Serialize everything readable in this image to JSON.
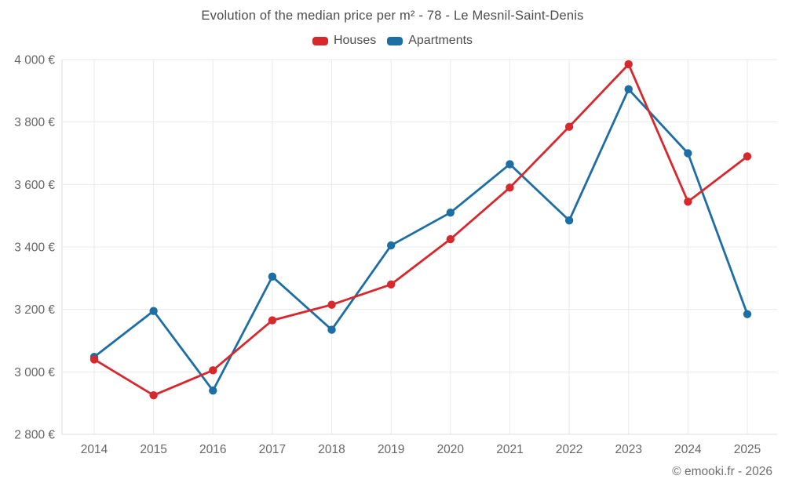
{
  "title": "Evolution of the median price per m² - 78 - Le Mesnil-Saint-Denis",
  "footer": "© emooki.fr - 2026",
  "legend": [
    {
      "label": "Houses",
      "color": "#d7282e"
    },
    {
      "label": "Apartments",
      "color": "#1c6ea4"
    }
  ],
  "colors": {
    "houses": "#d7282e",
    "apartments": "#1c6ea4",
    "grid": "#eaeaea",
    "axis_line": "#dcdcdc",
    "axis_text": "#666666",
    "title_text": "#4d4d4d"
  },
  "chart_data": {
    "type": "line",
    "title": "Evolution of the median price per m² - 78 - Le Mesnil-Saint-Denis",
    "x": [
      2014,
      2015,
      2016,
      2017,
      2018,
      2019,
      2020,
      2021,
      2022,
      2023,
      2024,
      2025
    ],
    "series": [
      {
        "name": "Houses",
        "color": "#d7282e",
        "values": [
          3040,
          2925,
          3005,
          3165,
          3215,
          3280,
          3425,
          3590,
          3785,
          3985,
          3545,
          3690
        ]
      },
      {
        "name": "Apartments",
        "color": "#1c6ea4",
        "values": [
          3048,
          3195,
          2940,
          3305,
          3135,
          3405,
          3510,
          3665,
          3485,
          3905,
          3700,
          3185
        ]
      }
    ],
    "ylim": [
      2800,
      4000
    ],
    "ytick_step": 200,
    "ytick_labels": [
      "2 800 €",
      "3 000 €",
      "3 200 €",
      "3 400 €",
      "3 600 €",
      "3 800 €",
      "4 000 €"
    ],
    "currency": "€",
    "grid": true,
    "legend_position": "top"
  }
}
